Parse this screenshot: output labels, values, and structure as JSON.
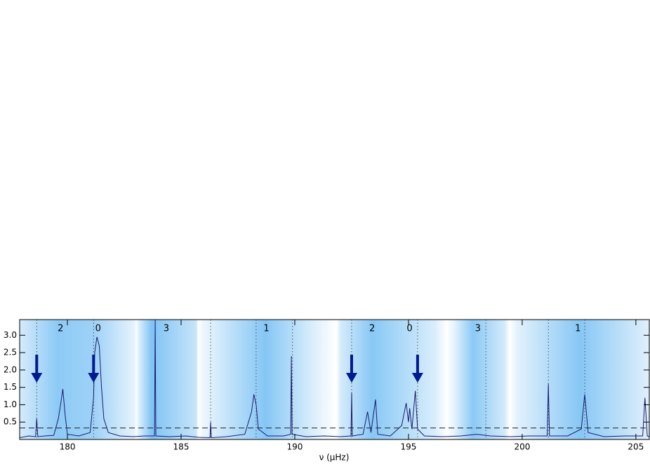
{
  "chart_data": {
    "type": "line",
    "x_label": "ν (μHz)",
    "xlim": [
      177.9,
      205.59
    ],
    "ylim": [
      0,
      3.45
    ],
    "xticks": [
      180,
      185,
      190,
      195,
      200,
      205
    ],
    "yticks": [
      {
        "value": 0.5,
        "label": "0.5"
      },
      {
        "value": 1.0,
        "label": "1.0"
      },
      {
        "value": 1.5,
        "label": "1.5"
      },
      {
        "value": 2.0,
        "label": "2.0"
      },
      {
        "value": 2.5,
        "label": "2.5"
      },
      {
        "value": 3.0,
        "label": "3.0"
      }
    ],
    "series": [
      {
        "color": "#1a1a6e",
        "x": [
          177.9,
          178.3,
          178.6,
          178.65,
          178.7,
          179.0,
          179.4,
          179.6,
          179.7,
          179.8,
          179.9,
          180.0,
          180.5,
          181.0,
          181.15,
          181.2,
          181.3,
          181.4,
          181.5,
          181.6,
          181.8,
          182.3,
          182.9,
          183.4,
          183.83,
          183.86,
          183.89,
          184.5,
          185.2,
          185.8,
          186.27,
          186.3,
          186.33,
          187.0,
          187.8,
          188.1,
          188.2,
          188.3,
          188.4,
          188.8,
          189.5,
          189.82,
          189.85,
          189.88,
          190.5,
          191.3,
          192.0,
          192.47,
          192.5,
          192.53,
          193.0,
          193.2,
          193.35,
          193.55,
          193.65,
          194.2,
          194.7,
          194.9,
          195.0,
          195.05,
          195.15,
          195.3,
          195.4,
          195.7,
          196.5,
          197.3,
          198.0,
          198.6,
          199.5,
          200.3,
          201.1,
          201.15,
          201.2,
          202.0,
          202.6,
          202.75,
          202.9,
          203.6,
          204.5,
          205.3,
          205.4,
          205.5,
          205.59
        ],
        "values": [
          0.05,
          0.1,
          0.08,
          0.6,
          0.08,
          0.1,
          0.12,
          0.6,
          1.0,
          1.45,
          0.7,
          0.15,
          0.1,
          0.2,
          1.2,
          2.5,
          2.95,
          2.7,
          1.5,
          0.6,
          0.2,
          0.1,
          0.08,
          0.1,
          0.1,
          3.45,
          0.1,
          0.08,
          0.1,
          0.06,
          0.05,
          0.5,
          0.05,
          0.08,
          0.15,
          0.8,
          1.3,
          1.0,
          0.3,
          0.1,
          0.1,
          0.15,
          2.4,
          0.15,
          0.08,
          0.1,
          0.08,
          0.1,
          1.35,
          0.1,
          0.15,
          0.8,
          0.2,
          1.15,
          0.15,
          0.1,
          0.4,
          1.05,
          0.5,
          0.9,
          0.3,
          1.4,
          0.3,
          0.1,
          0.08,
          0.1,
          0.15,
          0.1,
          0.08,
          0.1,
          0.1,
          1.6,
          0.1,
          0.1,
          0.3,
          1.3,
          0.2,
          0.08,
          0.1,
          0.1,
          1.2,
          0.1,
          0.08
        ]
      }
    ],
    "threshold": 0.33,
    "dotted_lines": [
      178.65,
      181.15,
      186.3,
      188.3,
      189.9,
      192.5,
      195.4,
      198.4,
      201.15,
      202.75
    ],
    "arrows": [
      178.65,
      181.15,
      192.5,
      195.4
    ],
    "mode_labels": [
      {
        "label": "2",
        "x": 179.7
      },
      {
        "label": "0",
        "x": 181.35
      },
      {
        "label": "3",
        "x": 184.35
      },
      {
        "label": "1",
        "x": 188.75
      },
      {
        "label": "2",
        "x": 193.4
      },
      {
        "label": "0",
        "x": 195.05
      },
      {
        "label": "3",
        "x": 198.05
      },
      {
        "label": "1",
        "x": 202.45
      }
    ]
  }
}
